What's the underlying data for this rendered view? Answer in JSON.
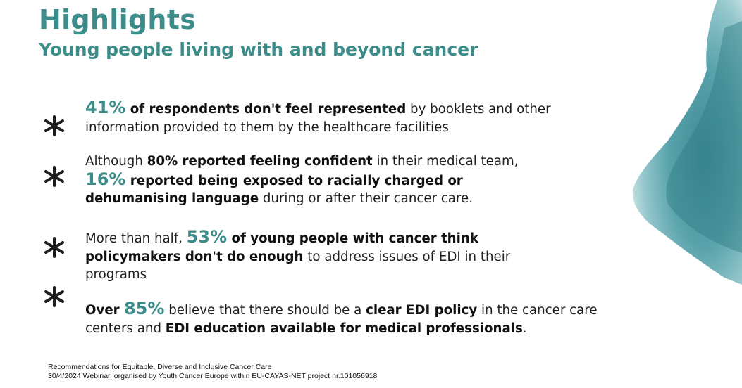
{
  "slide": {
    "title": "Highlights",
    "subtitle": "Young people living with and beyond cancer"
  },
  "bullets": [
    {
      "stat": "41%",
      "bold1": " of respondents don't feel represented",
      "text1": " by booklets and other information provided to them by the healthcare facilities"
    },
    {
      "pre": "Although ",
      "bold1": "80% reported feeling confident",
      "text1": " in their medical team, ",
      "stat": "16%",
      "bold2": " reported being exposed to racially charged or dehumanising language",
      "text2": " during or after their cancer care."
    },
    {
      "pre": "More than half, ",
      "stat": "53%",
      "bold1": " of young people with cancer think policymakers don't do enough",
      "text1": " to address issues of EDI in their programs"
    },
    {
      "bold0": "Over ",
      "stat": "85%",
      "text1": " believe that there should be a ",
      "bold1": "clear EDI policy",
      "text2": " in the cancer care centers and ",
      "bold2": "EDI education available for medical professionals",
      "text3": "."
    }
  ],
  "footer": {
    "line1": "Recommendations for Equitable, Diverse and Inclusive Cancer Care",
    "line2": "30/4/2024 Webinar, organised by Youth Cancer Europe within EU-CAYAS-NET project nr.101056918"
  },
  "colors": {
    "accent": "#3c8c8a",
    "watercolor": "#4a9aa4",
    "text": "#1e1e1e"
  },
  "icons": [
    "asterisk-icon"
  ]
}
